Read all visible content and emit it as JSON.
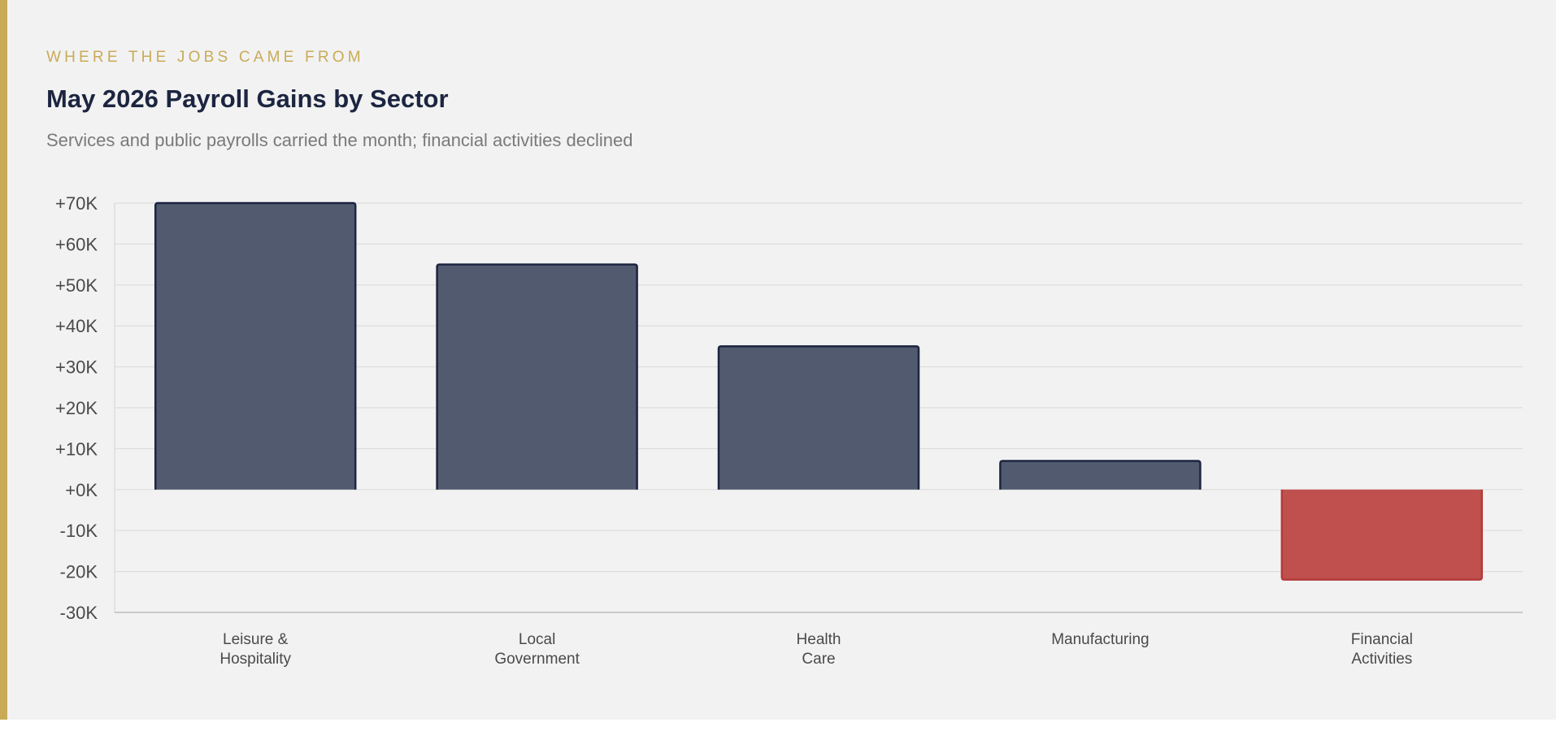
{
  "header": {
    "eyebrow": "WHERE THE JOBS CAME FROM",
    "title": "May 2026 Payroll Gains by Sector",
    "subtitle": "Services and public payrolls carried the month; financial activities declined"
  },
  "colors": {
    "accent": "#c9ab57",
    "positive_fill": "#525a70",
    "positive_stroke": "#1c2540",
    "negative_fill": "#c0504d",
    "negative_stroke": "#b33a3a",
    "grid": "#dddddd",
    "axis": "#bbbbbb"
  },
  "chart_data": {
    "type": "bar",
    "title": "May 2026 Payroll Gains by Sector",
    "subtitle": "Services and public payrolls carried the month; financial activities declined",
    "xlabel": "",
    "ylabel": "",
    "categories": [
      [
        "Leisure &",
        "Hospitality"
      ],
      [
        "Local",
        "Government"
      ],
      [
        "Health",
        "Care"
      ],
      [
        "Manufacturing"
      ],
      [
        "Financial",
        "Activities"
      ]
    ],
    "values": [
      70000,
      55000,
      35000,
      7000,
      -22000
    ],
    "ylim": [
      -30000,
      70000
    ],
    "yticks": [
      70000,
      60000,
      50000,
      40000,
      30000,
      20000,
      10000,
      0,
      -10000,
      -20000,
      -30000
    ],
    "ytick_labels": [
      "+70K",
      "+60K",
      "+50K",
      "+40K",
      "+30K",
      "+20K",
      "+10K",
      "+0K",
      "-10K",
      "-20K",
      "-30K"
    ],
    "grid": true,
    "legend": "none"
  }
}
